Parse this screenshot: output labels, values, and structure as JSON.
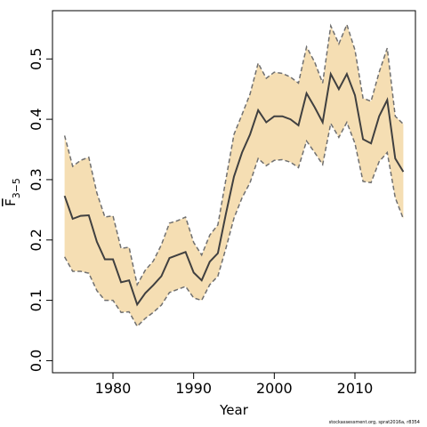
{
  "chart_data": {
    "type": "area",
    "xlabel": "Year",
    "ylabel": "F",
    "ylabel_sub": "3−5",
    "xlim": [
      1972.5,
      2017.5
    ],
    "ylim": [
      -0.02,
      0.58
    ],
    "xticks": [
      1980,
      1990,
      2000,
      2010
    ],
    "yticks": [
      0.0,
      0.1,
      0.2,
      0.3,
      0.4,
      0.5
    ],
    "ytick_labels": [
      "0.0",
      "0.1",
      "0.2",
      "0.3",
      "0.4",
      "0.5"
    ],
    "band_color": "#f5deb3",
    "line_color": "#404040",
    "bound_color": "#707070",
    "x": [
      1974,
      1975,
      1976,
      1977,
      1978,
      1979,
      1980,
      1981,
      1982,
      1983,
      1984,
      1985,
      1986,
      1987,
      1988,
      1989,
      1990,
      1991,
      1992,
      1993,
      1994,
      1995,
      1996,
      1997,
      1998,
      1999,
      2000,
      2001,
      2002,
      2003,
      2004,
      2005,
      2006,
      2007,
      2008,
      2009,
      2010,
      2011,
      2012,
      2013,
      2014,
      2015,
      2016
    ],
    "series": [
      {
        "role": "estimate",
        "values": [
          0.273,
          0.235,
          0.24,
          0.241,
          0.197,
          0.168,
          0.168,
          0.13,
          0.133,
          0.093,
          0.112,
          0.125,
          0.14,
          0.17,
          0.175,
          0.18,
          0.146,
          0.133,
          0.164,
          0.178,
          0.243,
          0.305,
          0.345,
          0.375,
          0.415,
          0.395,
          0.405,
          0.405,
          0.4,
          0.39,
          0.443,
          0.42,
          0.395,
          0.475,
          0.45,
          0.475,
          0.44,
          0.367,
          0.36,
          0.405,
          0.432,
          0.335,
          0.313
        ]
      },
      {
        "role": "upper",
        "values": [
          0.373,
          0.322,
          0.332,
          0.337,
          0.278,
          0.238,
          0.24,
          0.186,
          0.188,
          0.126,
          0.15,
          0.165,
          0.192,
          0.228,
          0.232,
          0.238,
          0.196,
          0.175,
          0.208,
          0.225,
          0.3,
          0.375,
          0.408,
          0.442,
          0.493,
          0.468,
          0.478,
          0.476,
          0.47,
          0.46,
          0.52,
          0.495,
          0.46,
          0.555,
          0.525,
          0.557,
          0.515,
          0.435,
          0.43,
          0.478,
          0.518,
          0.405,
          0.392
        ]
      },
      {
        "role": "lower",
        "values": [
          0.172,
          0.148,
          0.148,
          0.145,
          0.116,
          0.1,
          0.1,
          0.08,
          0.081,
          0.057,
          0.07,
          0.08,
          0.092,
          0.113,
          0.118,
          0.123,
          0.104,
          0.1,
          0.126,
          0.14,
          0.186,
          0.236,
          0.27,
          0.295,
          0.335,
          0.323,
          0.332,
          0.333,
          0.329,
          0.32,
          0.364,
          0.345,
          0.325,
          0.393,
          0.37,
          0.395,
          0.36,
          0.297,
          0.295,
          0.33,
          0.345,
          0.27,
          0.235
        ]
      }
    ]
  },
  "footnote": "stockassessment.org, sprat2016a, r8354"
}
